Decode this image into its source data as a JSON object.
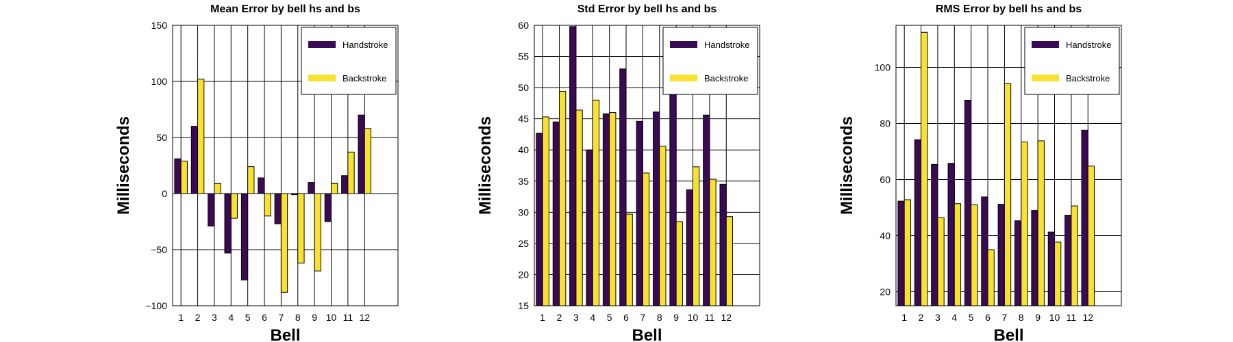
{
  "colors": {
    "handstroke": "#3b0a55",
    "backstroke": "#f9e22f",
    "background": "#ffffff",
    "grid": "#000000"
  },
  "chart_data": [
    {
      "type": "bar",
      "title": "Mean Error by bell hs and bs",
      "xlabel": "Bell",
      "ylabel": "Milliseconds",
      "categories": [
        "1",
        "2",
        "3",
        "4",
        "5",
        "6",
        "7",
        "8",
        "9",
        "10",
        "11",
        "12"
      ],
      "ylim": [
        -100,
        150
      ],
      "yticks": [
        -100,
        -50,
        0,
        50,
        100,
        150
      ],
      "ytick_labels": [
        "−100",
        "−50",
        "0",
        "50",
        "100",
        "150"
      ],
      "grid": true,
      "legend_position": "top-right",
      "series": [
        {
          "name": "Handstroke",
          "values": [
            31,
            60,
            -29,
            -53,
            -77,
            14,
            -27,
            -1,
            10,
            -25,
            16,
            70
          ]
        },
        {
          "name": "Backstroke",
          "values": [
            29,
            102,
            9,
            -22,
            24,
            -20,
            -88,
            -62,
            -69,
            9,
            37,
            58
          ]
        }
      ]
    },
    {
      "type": "bar",
      "title": "Std Error by bell hs and bs",
      "xlabel": "Bell",
      "ylabel": "Milliseconds",
      "categories": [
        "1",
        "2",
        "3",
        "4",
        "5",
        "6",
        "7",
        "8",
        "9",
        "10",
        "11",
        "12"
      ],
      "ylim": [
        15,
        60
      ],
      "yticks": [
        15,
        20,
        25,
        30,
        35,
        40,
        45,
        50,
        55,
        60
      ],
      "ytick_labels": [
        "15",
        "20",
        "25",
        "30",
        "35",
        "40",
        "45",
        "50",
        "55",
        "60"
      ],
      "grid": true,
      "legend_position": "top-right",
      "series": [
        {
          "name": "Handstroke",
          "values": [
            42.7,
            44.5,
            59.8,
            40.0,
            45.8,
            53.0,
            44.6,
            46.1,
            49.0,
            33.6,
            45.6,
            34.5
          ]
        },
        {
          "name": "Backstroke",
          "values": [
            45.3,
            49.4,
            46.4,
            48.0,
            46.0,
            29.7,
            36.3,
            40.6,
            28.5,
            37.3,
            35.3,
            29.3
          ]
        }
      ]
    },
    {
      "type": "bar",
      "title": "RMS Error by bell hs and bs",
      "xlabel": "Bell",
      "ylabel": "Milliseconds",
      "categories": [
        "1",
        "2",
        "3",
        "4",
        "5",
        "6",
        "7",
        "8",
        "9",
        "10",
        "11",
        "12"
      ],
      "ylim": [
        15,
        115
      ],
      "yticks": [
        20,
        40,
        60,
        80,
        100
      ],
      "ytick_labels": [
        "20",
        "40",
        "60",
        "80",
        "100"
      ],
      "grid": true,
      "legend_position": "top-right",
      "series": [
        {
          "name": "Handstroke",
          "values": [
            52.3,
            74.2,
            65.4,
            65.8,
            88.3,
            53.8,
            51.2,
            45.3,
            49.0,
            41.3,
            47.3,
            77.6
          ]
        },
        {
          "name": "Backstroke",
          "values": [
            52.8,
            112.5,
            46.4,
            51.4,
            51.0,
            35.0,
            94.2,
            73.4,
            73.8,
            37.7,
            50.6,
            64.8
          ]
        }
      ]
    }
  ]
}
